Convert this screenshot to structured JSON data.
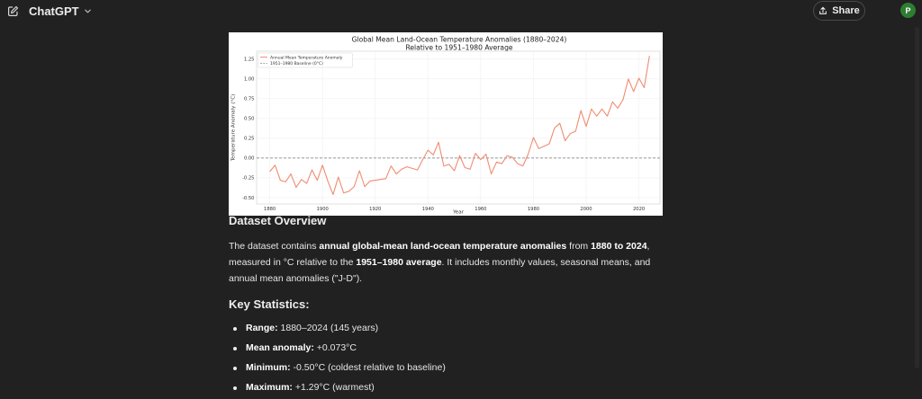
{
  "header": {
    "model_name": "ChatGPT",
    "share_label": "Share",
    "avatar_initial": "P",
    "icons": {
      "new_chat": "edit-icon",
      "model_dropdown": "chevron-down-icon",
      "share": "upload-icon"
    }
  },
  "chart_data": {
    "type": "line",
    "title": "Global Mean Land-Ocean Temperature Anomalies (1880–2024)",
    "subtitle": "Relative to 1951–1980 Average",
    "xlabel": "Year",
    "ylabel": "Temperature Anomaly (°C)",
    "xlim": [
      1875,
      2028
    ],
    "ylim": [
      -0.58,
      1.35
    ],
    "xticks": [
      1880,
      1900,
      1920,
      1940,
      1960,
      1980,
      2000,
      2020
    ],
    "yticks": [
      "1.25",
      "1.00",
      "0.75",
      "0.50",
      "0.25",
      "0.00",
      "-0.25",
      "-0.50"
    ],
    "ytick_values": [
      1.25,
      1.0,
      0.75,
      0.5,
      0.25,
      0.0,
      -0.25,
      -0.5
    ],
    "grid": true,
    "legend_position": "top-left",
    "colors": {
      "line": "#f08c72",
      "baseline": "#777777"
    },
    "series": [
      {
        "name": "Annual Mean Temperature Anomaly",
        "x": [
          1880,
          1882,
          1884,
          1886,
          1888,
          1890,
          1892,
          1894,
          1896,
          1898,
          1900,
          1902,
          1904,
          1906,
          1908,
          1910,
          1912,
          1914,
          1916,
          1918,
          1920,
          1922,
          1924,
          1926,
          1928,
          1930,
          1932,
          1934,
          1936,
          1938,
          1940,
          1942,
          1944,
          1946,
          1948,
          1950,
          1952,
          1954,
          1956,
          1958,
          1960,
          1962,
          1964,
          1966,
          1968,
          1970,
          1972,
          1974,
          1976,
          1978,
          1980,
          1982,
          1984,
          1986,
          1988,
          1990,
          1992,
          1994,
          1996,
          1998,
          2000,
          2002,
          2004,
          2006,
          2008,
          2010,
          2012,
          2014,
          2016,
          2018,
          2020,
          2022,
          2024
        ],
        "values": [
          -0.17,
          -0.09,
          -0.28,
          -0.3,
          -0.2,
          -0.37,
          -0.27,
          -0.32,
          -0.15,
          -0.28,
          -0.09,
          -0.29,
          -0.46,
          -0.24,
          -0.44,
          -0.42,
          -0.36,
          -0.16,
          -0.36,
          -0.29,
          -0.28,
          -0.27,
          -0.26,
          -0.1,
          -0.2,
          -0.14,
          -0.11,
          -0.13,
          -0.15,
          -0.02,
          0.1,
          0.04,
          0.2,
          -0.1,
          -0.08,
          -0.16,
          0.03,
          -0.12,
          -0.14,
          0.06,
          -0.02,
          0.05,
          -0.2,
          -0.05,
          -0.07,
          0.03,
          0.01,
          -0.07,
          -0.1,
          0.05,
          0.26,
          0.12,
          0.15,
          0.18,
          0.38,
          0.44,
          0.22,
          0.31,
          0.34,
          0.6,
          0.4,
          0.62,
          0.53,
          0.62,
          0.53,
          0.71,
          0.63,
          0.74,
          1.0,
          0.84,
          1.01,
          0.89,
          1.29
        ]
      },
      {
        "name": "1951–1980 Baseline (0°C)",
        "x": [
          1875,
          2028
        ],
        "values": [
          0,
          0
        ]
      }
    ]
  },
  "overview": {
    "heading": "Dataset Overview",
    "p1": "The dataset contains ",
    "b1": "annual global-mean land-ocean temperature anomalies",
    "p2": " from ",
    "b2": "1880 to 2024",
    "p3": ", measured in °C relative to the ",
    "b3": "1951–1980 average",
    "p4": ". It includes monthly values, seasonal means, and annual mean anomalies (\"J-D\")."
  },
  "key_stats": {
    "heading": "Key Statistics:",
    "items": [
      {
        "label": "Range:",
        "value": " 1880–2024 (145 years)"
      },
      {
        "label": "Mean anomaly:",
        "value": " +0.073°C"
      },
      {
        "label": "Minimum:",
        "value": " -0.50°C (coldest relative to baseline)"
      },
      {
        "label": "Maximum:",
        "value": " +1.29°C (warmest)"
      }
    ]
  }
}
